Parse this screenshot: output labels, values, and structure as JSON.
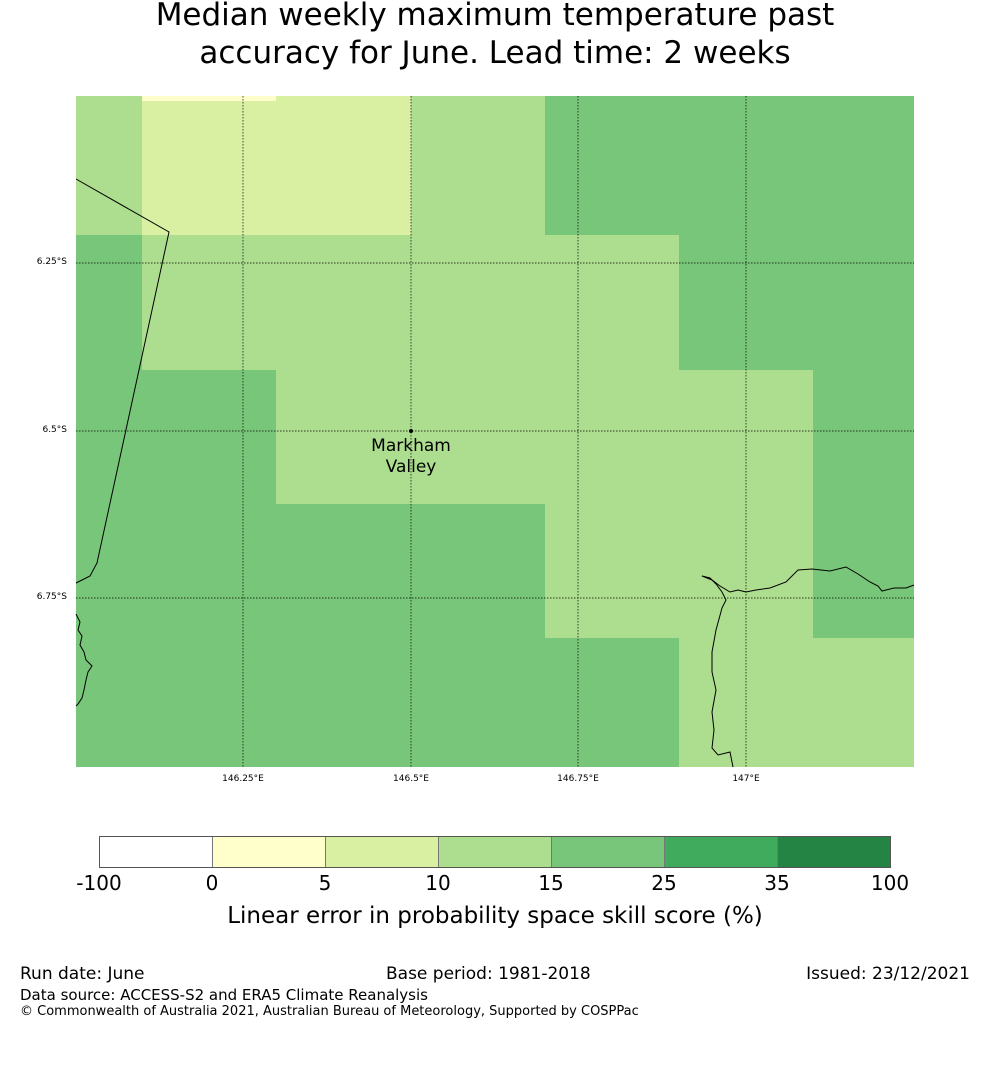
{
  "title": {
    "line1": "Median weekly maximum temperature past",
    "line2": "accuracy for June. Lead time: 2 weeks"
  },
  "map": {
    "lat_ticks": [
      "6.25°S",
      "6.5°S",
      "6.75°S"
    ],
    "lon_ticks": [
      "146.25°E",
      "146.5°E",
      "146.75°E",
      "147°E"
    ],
    "place_label": {
      "line1": "Markham",
      "line2": "Valley"
    },
    "place_point": {
      "lon": 146.5,
      "lat": -6.5
    },
    "grid": {
      "lon_min": 146.0,
      "lon_max": 147.25,
      "lat_top": -6.0,
      "lat_bottom": -7.0,
      "cell_size_deg": 0.2,
      "cell_bins": [
        [
          "10-15",
          "5-10",
          "5-10",
          "10-15",
          "15-25",
          "15-25",
          "15-25"
        ],
        [
          "15-25",
          "10-15",
          "10-15",
          "10-15",
          "10-15",
          "15-25",
          "15-25"
        ],
        [
          "15-25",
          "15-25",
          "10-15",
          "10-15",
          "10-15",
          "10-15",
          "15-25"
        ],
        [
          "15-25",
          "15-25",
          "15-25",
          "15-25",
          "10-15",
          "10-15",
          "15-25"
        ],
        [
          "15-25",
          "15-25",
          "15-25",
          "15-25",
          "15-25",
          "10-15",
          "10-15"
        ]
      ]
    }
  },
  "legend": {
    "segments": [
      {
        "range": "-100-0",
        "color": "#ffffff"
      },
      {
        "range": "0-5",
        "color": "#ffffcc"
      },
      {
        "range": "5-10",
        "color": "#d9f0a3"
      },
      {
        "range": "10-15",
        "color": "#addd8e"
      },
      {
        "range": "15-25",
        "color": "#78c679"
      },
      {
        "range": "25-35",
        "color": "#41ab5d"
      },
      {
        "range": "35-100",
        "color": "#238443"
      }
    ],
    "ticks": [
      "-100",
      "0",
      "5",
      "10",
      "15",
      "25",
      "35",
      "100"
    ],
    "label": "Linear error in probability space skill score (%)"
  },
  "footer": {
    "run_date": "Run date: June",
    "base_period": "Base period: 1981-2018",
    "issued": "Issued: 23/12/2021",
    "data_source": "Data source: ACCESS-S2 and ERA5 Climate Reanalysis",
    "copyright": "© Commonwealth of Australia 2021, Australian Bureau of Meteorology, Supported by COSPPac"
  }
}
